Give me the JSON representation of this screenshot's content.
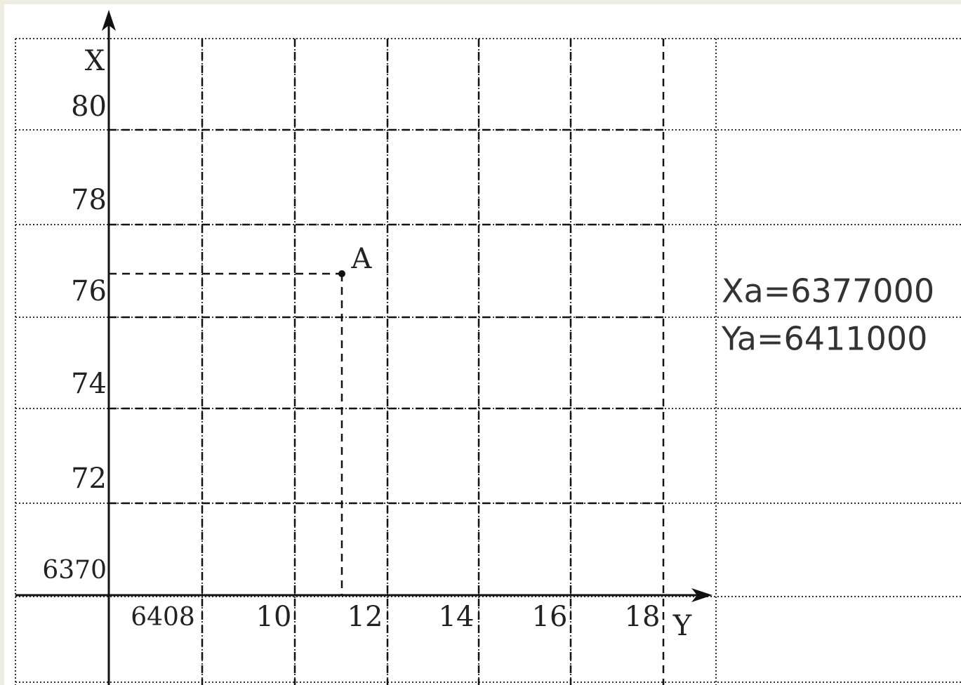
{
  "axes": {
    "x_label": "X",
    "y_label": "Y"
  },
  "x_ticks": [
    "80",
    "78",
    "76",
    "74",
    "72",
    "6370"
  ],
  "y_ticks": [
    "6408",
    "10",
    "12",
    "14",
    "16",
    "18"
  ],
  "point": {
    "label": "A"
  },
  "annotations": [
    "Xa=6377000",
    "Ya=6411000"
  ]
}
